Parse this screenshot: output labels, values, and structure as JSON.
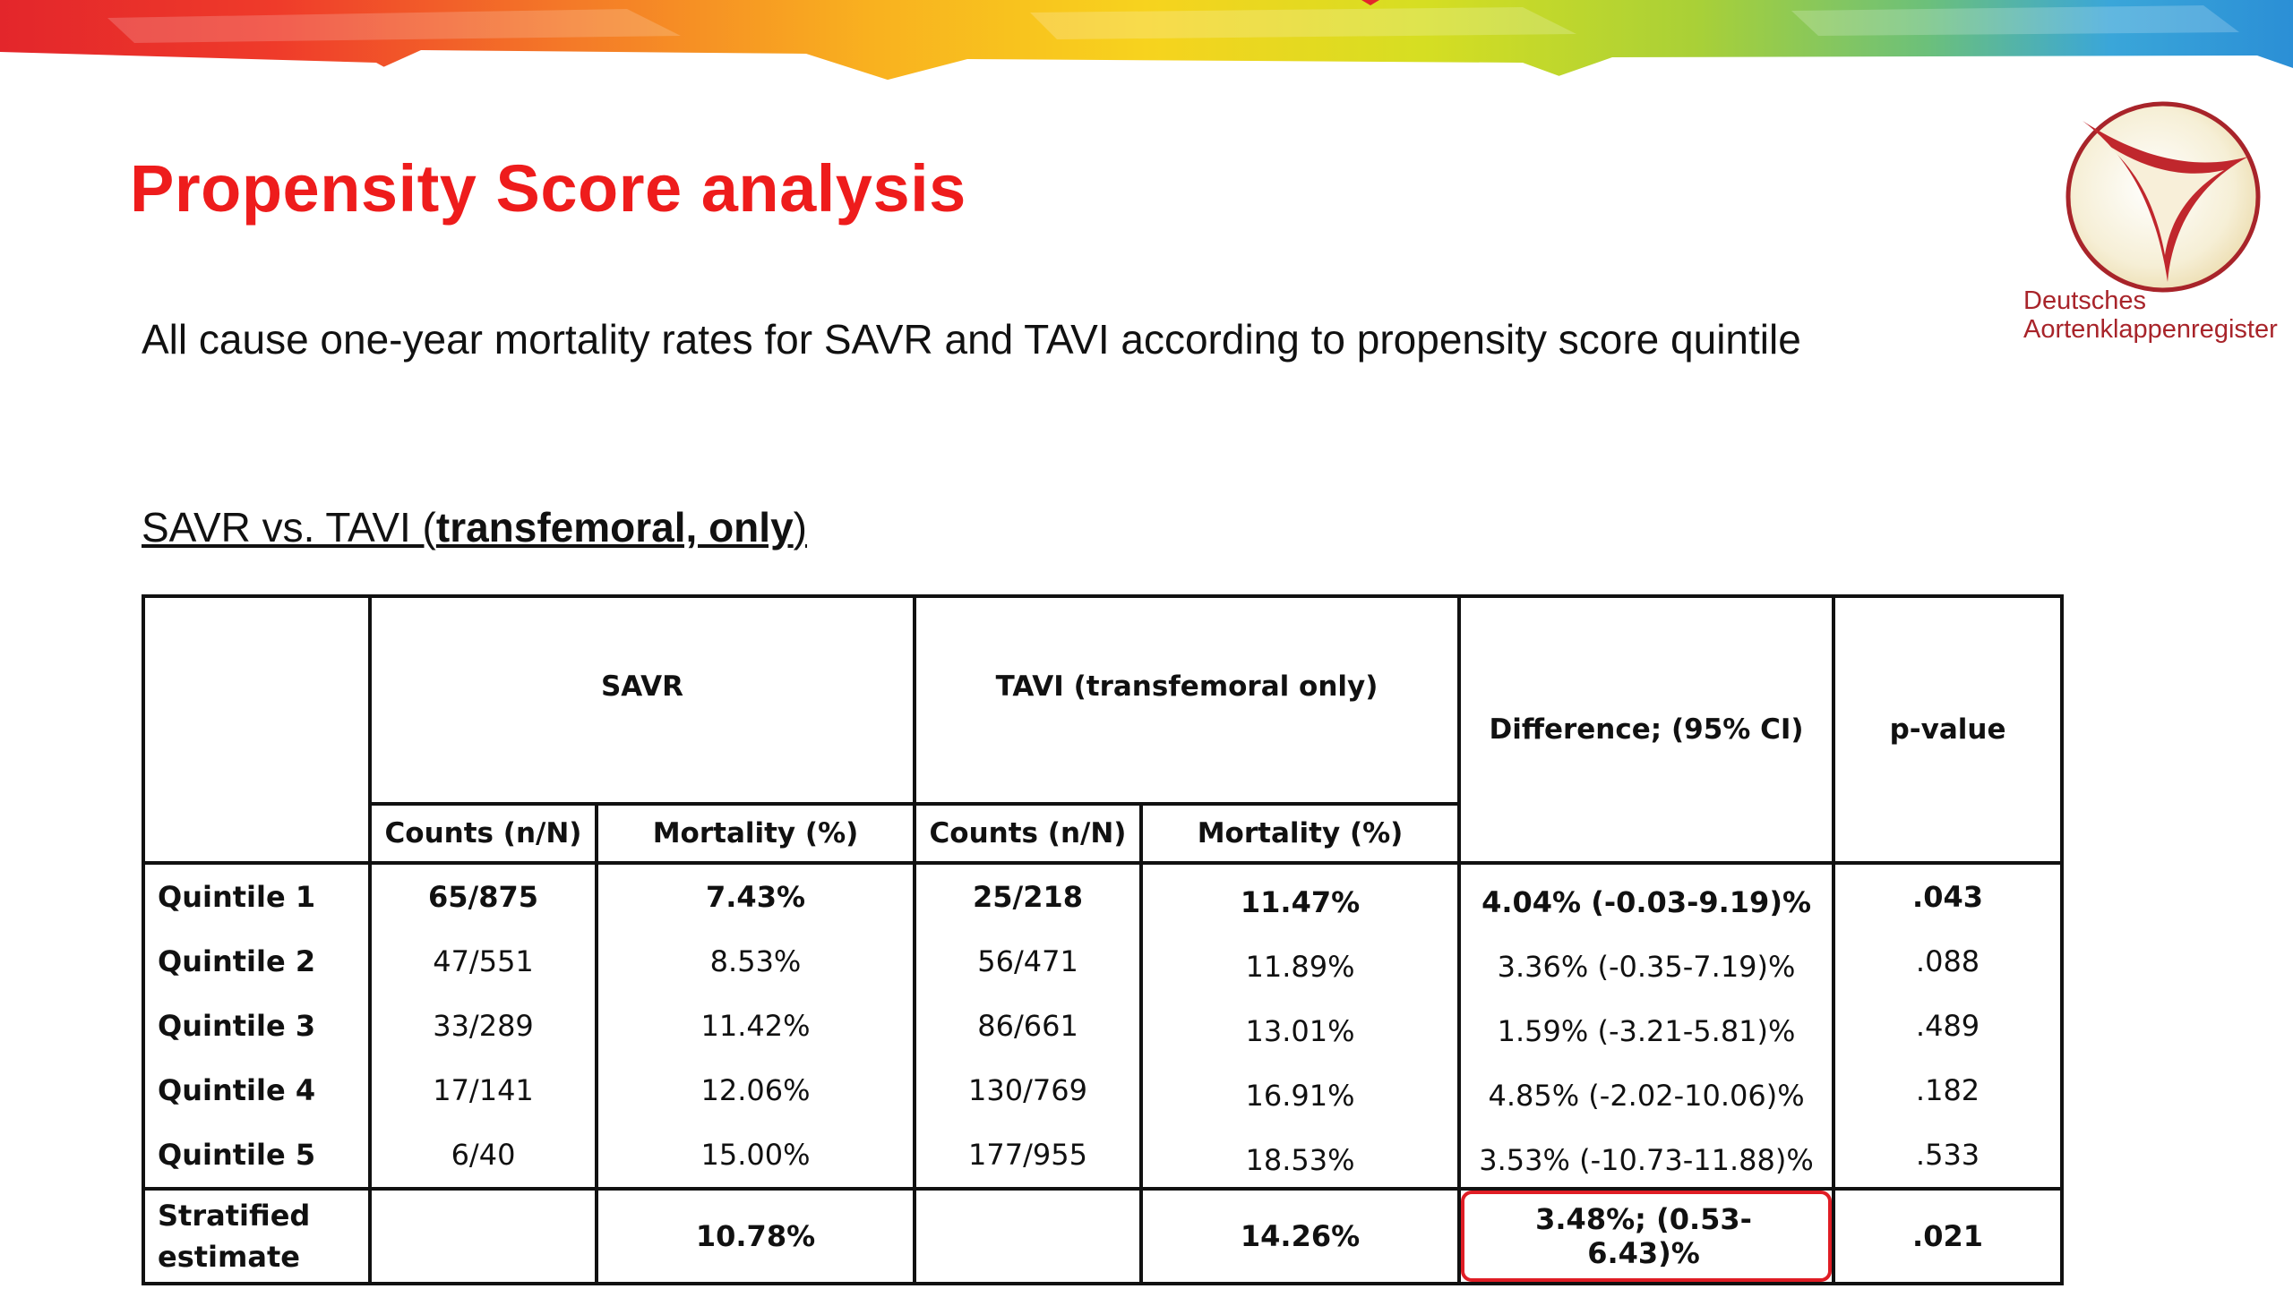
{
  "slide": {
    "title": "Propensity Score analysis",
    "subtitle": "All cause one-year mortality rates for SAVR and TAVI according to propensity score quintile",
    "section_heading_prefix": "SAVR vs. TAVI (",
    "section_heading_bold": "transfemoral, only",
    "section_heading_suffix": ")"
  },
  "logo": {
    "line1": "Deutsches",
    "line2": "Aortenklappenregister"
  },
  "table": {
    "group_headers": {
      "savr": "SAVR",
      "tavi": "TAVI (transfemoral only)",
      "difference": "Difference; (95% CI)",
      "p_value": "p-value"
    },
    "sub_headers": {
      "savr_counts": "Counts (n/N)",
      "savr_mortality": "Mortality (%)",
      "tavi_counts": "Counts (n/N)",
      "tavi_mortality": "Mortality (%)"
    },
    "rows": [
      {
        "label": "Quintile 1",
        "savr_counts": "65/875",
        "savr_mortality": "7.43%",
        "tavi_counts": "25/218",
        "tavi_mortality": "11.47%",
        "difference": "4.04% (-0.03-9.19)%",
        "p_value": ".043"
      },
      {
        "label": "Quintile 2",
        "savr_counts": "47/551",
        "savr_mortality": "8.53%",
        "tavi_counts": "56/471",
        "tavi_mortality": "11.89%",
        "difference": "3.36% (-0.35-7.19)%",
        "p_value": ".088"
      },
      {
        "label": "Quintile 3",
        "savr_counts": "33/289",
        "savr_mortality": "11.42%",
        "tavi_counts": "86/661",
        "tavi_mortality": "13.01%",
        "difference": "1.59% (-3.21-5.81)%",
        "p_value": ".489"
      },
      {
        "label": "Quintile 4",
        "savr_counts": "17/141",
        "savr_mortality": "12.06%",
        "tavi_counts": "130/769",
        "tavi_mortality": "16.91%",
        "difference": "4.85% (-2.02-10.06)%",
        "p_value": ".182"
      },
      {
        "label": "Quintile 5",
        "savr_counts": "6/40",
        "savr_mortality": "15.00%",
        "tavi_counts": "177/955",
        "tavi_mortality": "18.53%",
        "difference": "3.53% (-10.73-11.88)%",
        "p_value": ".533"
      }
    ],
    "stratified": {
      "label_line1": "Stratified",
      "label_line2": "estimate",
      "savr_mortality": "10.78%",
      "tavi_mortality": "14.26%",
      "difference": "3.48%; (0.53-6.43)%",
      "p_value": ".021"
    }
  }
}
